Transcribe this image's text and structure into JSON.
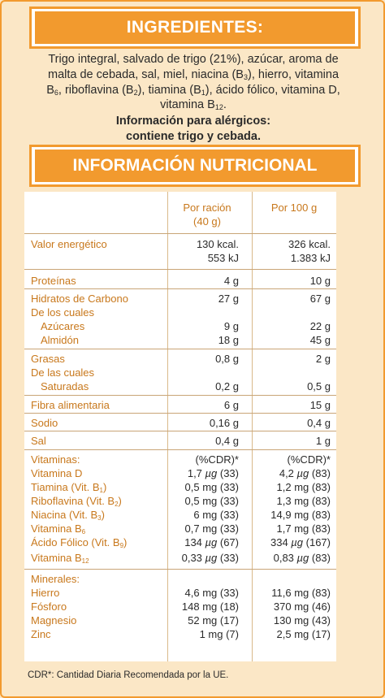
{
  "ingredients": {
    "title": "INGREDIENTES:",
    "line1": "Trigo integral, salvado de trigo (21%), azúcar, aroma de",
    "line2a": "malta de cebada, sal, miel, niacina (B",
    "line2b": "), hierro, vitamina",
    "line3a": "B",
    "line3b": ", riboflavina (B",
    "line3c": "), tiamina (B",
    "line3d": "), ácido fólico, vitamina D,",
    "line4a": "vitamina B",
    "line4b": ".",
    "sub_3": "3",
    "sub_6": "6",
    "sub_2": "2",
    "sub_1": "1",
    "sub_12": "12",
    "allergen_title": "Información para alérgicos:",
    "allergen_text": "contiene trigo y cebada."
  },
  "nutrition": {
    "title": "INFORMACIÓN NUTRICIONAL",
    "col1_header_a": "Por ración",
    "col1_header_b": "(40 g)",
    "col2_header": "Por 100 g",
    "rows": {
      "energia_label": "Valor energético",
      "energia_kcal_1": "130 kcal.",
      "energia_kcal_2": "326 kcal.",
      "energia_kj_1": "553 kJ",
      "energia_kj_2": "1.383 kJ",
      "proteinas_label": "Proteínas",
      "proteinas_1": "4 g",
      "proteinas_2": "10 g",
      "hc_label": "Hidratos de Carbono",
      "hc_1": "27 g",
      "hc_2": "67 g",
      "decuales1_label": "De los cuales",
      "azucares_label": "Azúcares",
      "azucares_1": "9 g",
      "azucares_2": "22 g",
      "almidon_label": "Almidón",
      "almidon_1": "18 g",
      "almidon_2": "45 g",
      "grasas_label": "Grasas",
      "grasas_1": "0,8 g",
      "grasas_2": "2 g",
      "decuales2_label": "De las cuales",
      "saturadas_label": "Saturadas",
      "saturadas_1": "0,2 g",
      "saturadas_2": "0,5 g",
      "fibra_label": "Fibra alimentaria",
      "fibra_1": "6 g",
      "fibra_2": "15 g",
      "sodio_label": "Sodio",
      "sodio_1": "0,16 g",
      "sodio_2": "0,4 g",
      "sal_label": "Sal",
      "sal_1": "0,4 g",
      "sal_2": "1 g",
      "vitaminas_label": "Vitaminas:",
      "cdr_1": "(%CDR)*",
      "cdr_2": "(%CDR)*",
      "vitd_label": "Vitamina D",
      "vitd_1a": "1,7 ",
      "vitd_1u": "µg",
      "vitd_1b": " (33)",
      "vitd_2a": "4,2 ",
      "vitd_2u": "µg",
      "vitd_2b": " (83)",
      "tiamina_label_a": "Tiamina (Vit. B",
      "tiamina_label_b": ")",
      "tiamina_1": "0,5 mg (33)",
      "tiamina_2": "1,2 mg (83)",
      "ribo_label_a": "Riboflavina (Vit. B",
      "ribo_label_b": ")",
      "ribo_1": "0,5 mg (33)",
      "ribo_2": "1,3 mg (83)",
      "niacina_label_a": "Niacina (Vit. B",
      "niacina_label_b": ")",
      "niacina_1": "6 mg (33)",
      "niacina_2": "14,9 mg (83)",
      "vitb6_label_a": "Vitamina B",
      "vitb6_1": "0,7 mg (33)",
      "vitb6_2": "1,7 mg (83)",
      "folico_label_a": "Ácido Fólico (Vit. B",
      "folico_label_b": ")",
      "sub_9": "9",
      "folico_1a": "134 ",
      "folico_1u": "µg",
      "folico_1b": " (67)",
      "folico_2a": "334 ",
      "folico_2u": "µg",
      "folico_2b": " (167)",
      "vitb12_label_a": "Vitamina B",
      "vitb12_1a": "0,33 ",
      "vitb12_1u": "µg",
      "vitb12_1b": " (33)",
      "vitb12_2a": "0,83 ",
      "vitb12_2u": "µg",
      "vitb12_2b": " (83)",
      "minerales_label": "Minerales:",
      "hierro_label": "Hierro",
      "hierro_1": "4,6 mg (33)",
      "hierro_2": "11,6 mg (83)",
      "fosforo_label": "Fósforo",
      "fosforo_1": "148 mg (18)",
      "fosforo_2": "370 mg (46)",
      "magnesio_label": "Magnesio",
      "magnesio_1": "52 mg (17)",
      "magnesio_2": "130 mg (43)",
      "zinc_label": "Zinc",
      "zinc_1": "1 mg (7)",
      "zinc_2": "2,5 mg (17)"
    },
    "footnote": "CDR*: Cantidad Diaria Recomendada por la UE."
  },
  "colors": {
    "accent": "#f29a2e",
    "background": "#fbe7c6",
    "label_orange": "#c8781c"
  }
}
